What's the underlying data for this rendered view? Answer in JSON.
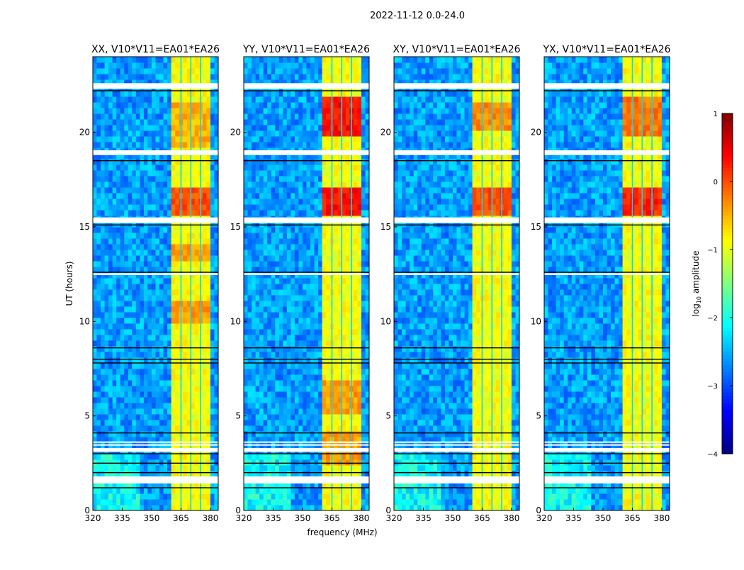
{
  "chart_data": {
    "type": "heatmap",
    "title": "2022-11-12 0.0-24.0",
    "xlabel": "frequency (MHz)",
    "ylabel": "UT (hours)",
    "xlim": [
      320,
      384
    ],
    "ylim": [
      0,
      24
    ],
    "xticks": [
      "320",
      "335",
      "350",
      "365",
      "380"
    ],
    "yticks": [
      "0",
      "5",
      "10",
      "15",
      "20"
    ],
    "colorbar": {
      "label_main": "log",
      "label_sub": "10",
      "label_rest": " amplitude",
      "range": [
        -4,
        1
      ],
      "ticks": [
        "1",
        "0",
        "−1",
        "−2",
        "−3",
        "−4"
      ],
      "colormap": "jet"
    },
    "background_level": -2.6,
    "rfi_band_mhz": [
      360.5,
      380
    ],
    "rfi_band_level": -0.9,
    "rfi_gap_lines_mhz": [
      365,
      370,
      375
    ],
    "flagged_time_ranges": [
      [
        1.43,
        1.8
      ],
      [
        3.1,
        3.3
      ],
      [
        3.45,
        3.5
      ],
      [
        3.6,
        3.65
      ],
      [
        12.45,
        12.55
      ],
      [
        15.2,
        15.5
      ],
      [
        18.8,
        19.05
      ],
      [
        22.3,
        22.6
      ]
    ],
    "dark_lines_hours": [
      1.2,
      2.0,
      2.5,
      3.0,
      4.1,
      7.8,
      8.0,
      8.6,
      12.6,
      15.1,
      18.5,
      22.2
    ],
    "panels": [
      {
        "title": "XX, V10*V11=EA01*EA26",
        "hot_regions": [
          {
            "t": [
              15.6,
              17.0
            ],
            "level": 0.0
          },
          {
            "t": [
              9.8,
              11.2
            ],
            "level": -0.4
          },
          {
            "t": [
              13.3,
              14.0
            ],
            "level": -0.4
          },
          {
            "t": [
              19.2,
              21.5
            ],
            "level": -0.5
          }
        ]
      },
      {
        "title": "YY, V10*V11=EA01*EA26",
        "hot_regions": [
          {
            "t": [
              15.6,
              17.0
            ],
            "level": 0.3
          },
          {
            "t": [
              19.8,
              22.0
            ],
            "level": 0.3
          },
          {
            "t": [
              5.0,
              7.0
            ],
            "level": -0.4
          },
          {
            "t": [
              2.5,
              4.2
            ],
            "level": -0.4
          }
        ]
      },
      {
        "title": "XY, V10*V11=EA01*EA26",
        "hot_regions": [
          {
            "t": [
              15.6,
              17.0
            ],
            "level": 0.0
          },
          {
            "t": [
              20.0,
              21.5
            ],
            "level": -0.3
          }
        ]
      },
      {
        "title": "YX, V10*V11=EA01*EA26",
        "hot_regions": [
          {
            "t": [
              15.6,
              17.0
            ],
            "level": 0.2
          },
          {
            "t": [
              19.8,
              22.0
            ],
            "level": -0.2
          }
        ]
      }
    ]
  }
}
